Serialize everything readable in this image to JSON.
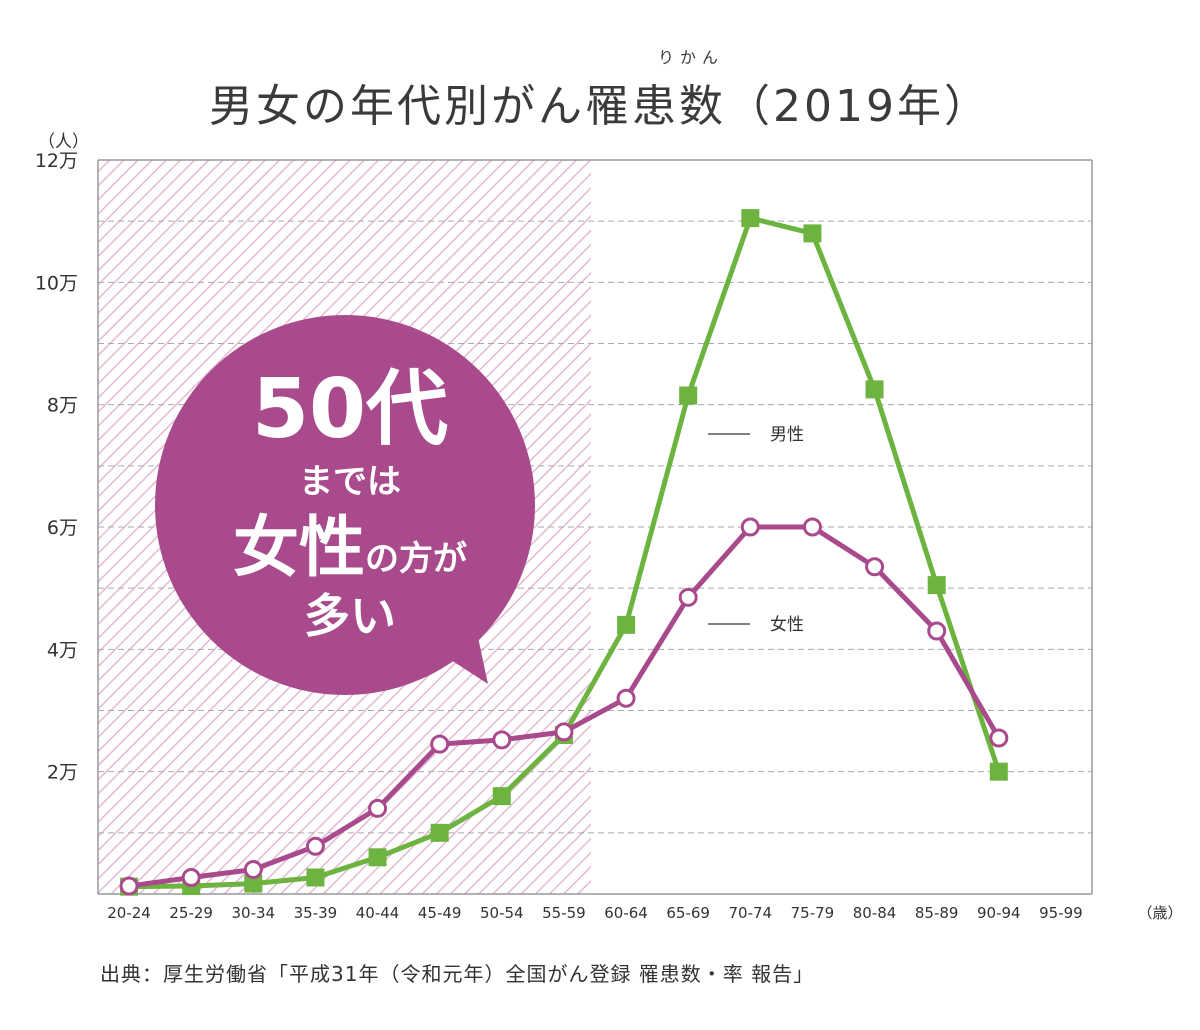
{
  "title": {
    "main": "男女の年代別がん罹患数（2019年）",
    "ruby": "りかん"
  },
  "y_unit": "（人）",
  "x_unit": "（歳）",
  "source": "出典：厚生労働省「平成31年（令和元年）全国がん登録 罹患数・率 報告」",
  "callout": {
    "line1": "50代",
    "line2": "までは",
    "line3_big": "女性",
    "line3_small": "の方が",
    "line4": "多い",
    "color": "#a84a8c"
  },
  "chart_data": {
    "type": "line",
    "title": "男女の年代別がん罹患数（2019年）",
    "xlabel": "（歳）",
    "ylabel": "（人）",
    "ylim": [
      0,
      120000
    ],
    "y_ticks": [
      {
        "value": 20000,
        "label": "2万"
      },
      {
        "value": 40000,
        "label": "4万"
      },
      {
        "value": 60000,
        "label": "6万"
      },
      {
        "value": 80000,
        "label": "8万"
      },
      {
        "value": 100000,
        "label": "10万"
      },
      {
        "value": 120000,
        "label": "12万"
      }
    ],
    "grid": true,
    "categories": [
      "20-24",
      "25-29",
      "30-34",
      "35-39",
      "40-44",
      "45-49",
      "50-54",
      "55-59",
      "60-64",
      "65-69",
      "70-74",
      "75-79",
      "80-84",
      "85-89",
      "90-94",
      "95-99"
    ],
    "highlight_range": [
      "20-24",
      "55-59"
    ],
    "series": [
      {
        "name": "男性",
        "color": "#6db33f",
        "marker": "square",
        "values": [
          1200,
          1300,
          1700,
          2700,
          6000,
          10000,
          16000,
          26000,
          44000,
          81500,
          110500,
          108000,
          82500,
          50500,
          20000,
          null
        ]
      },
      {
        "name": "女性",
        "color": "#a84a8c",
        "marker": "circle",
        "values": [
          1300,
          2700,
          4000,
          7800,
          14000,
          24500,
          25200,
          26500,
          32000,
          48500,
          60000,
          60000,
          53500,
          43000,
          25500,
          null
        ]
      }
    ]
  }
}
